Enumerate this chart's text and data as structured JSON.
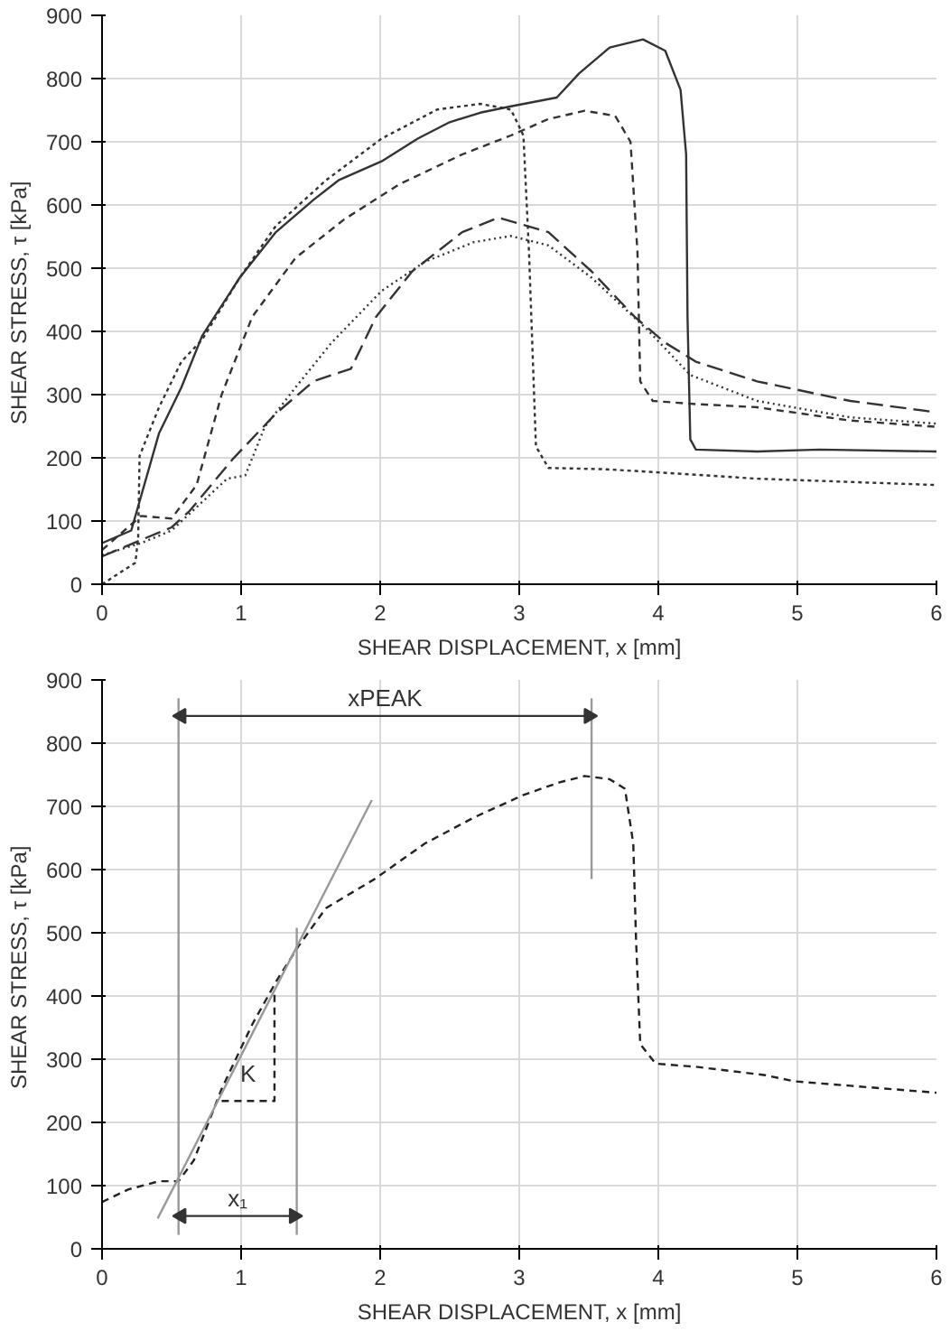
{
  "chart_data": [
    {
      "type": "line",
      "xlabel": "SHEAR DISPLACEMENT, x [mm]",
      "ylabel": "SHEAR STRESS, τ  [kPa]",
      "xlim": [
        0,
        6
      ],
      "xticks": [
        0,
        1,
        2,
        3,
        4,
        5,
        6
      ],
      "ylim": [
        0,
        900
      ],
      "yticks": [
        0,
        100,
        200,
        300,
        400,
        500,
        600,
        700,
        800,
        900
      ],
      "grid": true,
      "series": [
        {
          "color": "#333333",
          "line_style": "solid",
          "x": [
            0,
            0.21,
            0.41,
            0.57,
            0.72,
            0.99,
            1.25,
            1.52,
            1.7,
            2.01,
            2.27,
            2.5,
            2.72,
            2.94,
            3.27,
            3.43,
            3.65,
            3.89,
            4.05,
            4.16,
            4.2,
            4.21,
            4.23,
            4.27,
            4.71,
            5.16,
            6
          ],
          "values": [
            65,
            85,
            239,
            311,
            393,
            485,
            557,
            608,
            639,
            669,
            705,
            731,
            746,
            756,
            770,
            808,
            849,
            862,
            844,
            782,
            680,
            423,
            229,
            213,
            210,
            213,
            210
          ]
        },
        {
          "color": "#333333",
          "line_style": "dotted",
          "x": [
            0,
            0.24,
            0.26,
            0.27,
            0.41,
            0.57,
            0.72,
            0.99,
            1.25,
            1.61,
            2.01,
            2.41,
            2.72,
            2.94,
            3.03,
            3.07,
            3.12,
            3.21,
            3.61,
            4.0,
            4.71,
            6
          ],
          "values": [
            0,
            34,
            75,
            203,
            280,
            352,
            387,
            485,
            567,
            639,
            705,
            751,
            760,
            751,
            710,
            526,
            218,
            184,
            182,
            177,
            167,
            157
          ]
        },
        {
          "color": "#333333",
          "line_style": "dashed",
          "x": [
            0,
            0.28,
            0.5,
            0.68,
            0.86,
            1.08,
            1.39,
            1.74,
            2.14,
            2.59,
            2.94,
            3.21,
            3.47,
            3.69,
            3.8,
            3.85,
            3.87,
            3.96,
            4.27,
            4.71,
            5.38,
            6
          ],
          "values": [
            54,
            108,
            104,
            157,
            300,
            423,
            516,
            577,
            633,
            680,
            710,
            736,
            749,
            741,
            700,
            526,
            321,
            290,
            285,
            280,
            259,
            249
          ]
        },
        {
          "color": "#333333",
          "line_style": "longdash",
          "x": [
            0,
            0.28,
            0.5,
            0.63,
            0.94,
            1.25,
            1.52,
            1.79,
            1.97,
            2.23,
            2.59,
            2.85,
            3.21,
            3.52,
            3.83,
            4.05,
            4.27,
            4.71,
            5.38,
            6
          ],
          "values": [
            44,
            70,
            90,
            116,
            198,
            270,
            321,
            341,
            423,
            495,
            557,
            580,
            557,
            495,
            423,
            382,
            352,
            321,
            290,
            272
          ]
        },
        {
          "color": "#333333",
          "line_style": "finedot",
          "x": [
            0,
            0.28,
            0.5,
            0.9,
            1.03,
            1.17,
            1.39,
            1.65,
            2.01,
            2.32,
            2.67,
            2.94,
            3.21,
            3.52,
            3.92,
            4.23,
            4.71,
            5.38,
            6
          ],
          "values": [
            46,
            65,
            85,
            167,
            172,
            249,
            311,
            382,
            464,
            510,
            541,
            551,
            536,
            485,
            403,
            331,
            290,
            264,
            254
          ]
        }
      ]
    },
    {
      "type": "line",
      "xlabel": "SHEAR DISPLACEMENT, x [mm]",
      "ylabel": "SHEAR STRESS, τ  [kPa]",
      "xlim": [
        0,
        6
      ],
      "xticks": [
        0,
        1,
        2,
        3,
        4,
        5,
        6
      ],
      "ylim": [
        0,
        900
      ],
      "yticks": [
        0,
        100,
        200,
        300,
        400,
        500,
        600,
        700,
        800,
        900
      ],
      "grid": true,
      "series": [
        {
          "color": "#222222",
          "line_style": "dashed",
          "x": [
            0,
            0.19,
            0.41,
            0.55,
            0.66,
            0.86,
            1.08,
            1.26,
            1.41,
            1.61,
            1.96,
            2.32,
            2.67,
            3.03,
            3.29,
            3.47,
            3.65,
            3.76,
            3.82,
            3.84,
            3.87,
            3.98,
            4.27,
            4.76,
            4.98,
            5.38,
            6
          ],
          "values": [
            74,
            94,
            107,
            107,
            140,
            253,
            355,
            426,
            478,
            539,
            585,
            641,
            682,
            718,
            738,
            748,
            743,
            728,
            641,
            488,
            324,
            293,
            288,
            275,
            265,
            258,
            247
          ]
        },
        {
          "color": "#999999",
          "line_style": "solid",
          "x": [
            0.4,
            1.94
          ],
          "values": [
            48,
            710
          ]
        },
        {
          "color": "#999999",
          "line_style": "solid",
          "x": [
            0.55,
            0.55
          ],
          "values": [
            22,
            871
          ]
        },
        {
          "color": "#999999",
          "line_style": "solid",
          "x": [
            1.4,
            1.4
          ],
          "values": [
            22,
            508
          ]
        },
        {
          "color": "#999999",
          "line_style": "solid",
          "x": [
            3.52,
            3.52
          ],
          "values": [
            585,
            871
          ]
        },
        {
          "name": "K",
          "color": "#222222",
          "line_style": "dashed",
          "x": [
            0.86,
            1.24,
            1.24
          ],
          "values": [
            234,
            234,
            406
          ]
        },
        {
          "name": "xPEAK",
          "color": "#333333",
          "line_style": "solid",
          "marker": "triangle",
          "x": [
            0.57,
            3.5
          ],
          "values": [
            843,
            843
          ]
        },
        {
          "name": "x₁",
          "color": "#333333",
          "line_style": "solid",
          "marker": "triangle",
          "x": [
            0.57,
            1.38
          ],
          "values": [
            52,
            52
          ]
        }
      ]
    }
  ]
}
